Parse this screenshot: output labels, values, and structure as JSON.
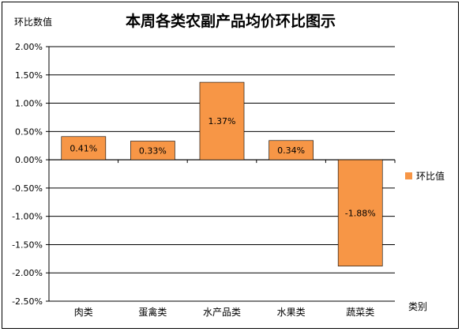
{
  "chart_data": {
    "type": "bar",
    "title": "本周各类农副产品均价环比图示",
    "ylabel": "环比数值",
    "xlabel": "类别",
    "categories": [
      "肉类",
      "蛋禽类",
      "水产品类",
      "水果类",
      "蔬菜类"
    ],
    "series": [
      {
        "name": "环比值",
        "values": [
          0.41,
          0.33,
          1.37,
          0.34,
          -1.88
        ],
        "labels": [
          "0.41%",
          "0.33%",
          "1.37%",
          "0.34%",
          "-1.88%"
        ],
        "color": "#f79646"
      }
    ],
    "ylim": [
      -2.5,
      2.0
    ],
    "yticks": [
      "2.00%",
      "1.50%",
      "1.00%",
      "0.50%",
      "0.00%",
      "-0.50%",
      "-1.00%",
      "-1.50%",
      "-2.00%",
      "-2.50%"
    ],
    "grid": true,
    "legend": "right"
  }
}
